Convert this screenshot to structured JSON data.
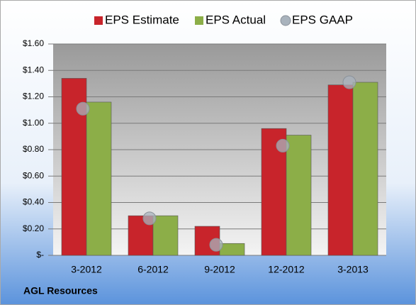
{
  "chart_data": {
    "type": "bar",
    "categories": [
      "3-2012",
      "6-2012",
      "9-2012",
      "12-2012",
      "3-2013"
    ],
    "series": [
      {
        "name": "EPS Estimate",
        "color": "#c8242b",
        "values": [
          1.34,
          0.3,
          0.22,
          0.96,
          1.29
        ]
      },
      {
        "name": "EPS Actual",
        "color": "#8cae48",
        "values": [
          1.16,
          0.3,
          0.09,
          0.91,
          1.31
        ]
      },
      {
        "name": "EPS GAAP",
        "type": "scatter",
        "color": "#a9b3bd",
        "values": [
          1.11,
          0.28,
          0.08,
          0.83,
          1.31
        ]
      }
    ],
    "ylim": [
      0,
      1.6
    ],
    "yticks": [
      {
        "value": 0,
        "label": "$-"
      },
      {
        "value": 0.2,
        "label": "$0.20"
      },
      {
        "value": 0.4,
        "label": "$0.40"
      },
      {
        "value": 0.6,
        "label": "$0.60"
      },
      {
        "value": 0.8,
        "label": "$0.80"
      },
      {
        "value": 1.0,
        "label": "$1.00"
      },
      {
        "value": 1.2,
        "label": "$1.20"
      },
      {
        "value": 1.4,
        "label": "$1.40"
      },
      {
        "value": 1.6,
        "label": "$1.60"
      }
    ],
    "grid": true,
    "legend": "top",
    "footnote": "AGL Resources"
  }
}
